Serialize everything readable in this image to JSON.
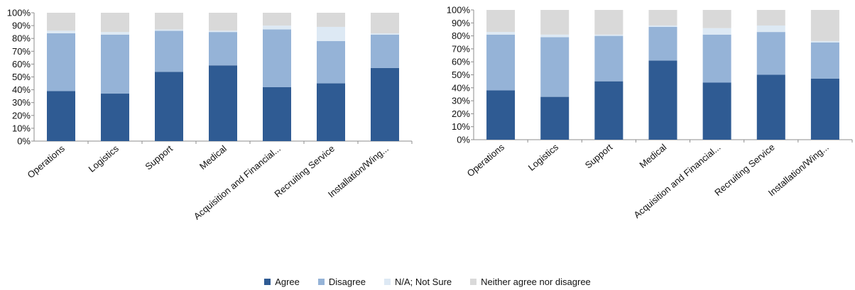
{
  "chart_data": [
    {
      "type": "bar",
      "stacked": true,
      "categories": [
        "Operations",
        "Logistics",
        "Support",
        "Medical",
        "Acquisition and Financial...",
        "Recruiting Service",
        "Installation/Wing..."
      ],
      "ylim": [
        0,
        100
      ],
      "yticks": [
        "0%",
        "10%",
        "20%",
        "30%",
        "40%",
        "50%",
        "60%",
        "70%",
        "80%",
        "90%",
        "100%"
      ],
      "series": [
        {
          "name": "Agree",
          "values": [
            39,
            37,
            54,
            59,
            42,
            45,
            57
          ]
        },
        {
          "name": "Disagree",
          "values": [
            45,
            46,
            32,
            26,
            45,
            33,
            26
          ]
        },
        {
          "name": "N/A; Not Sure",
          "values": [
            2,
            2,
            1,
            1,
            3,
            11,
            1
          ]
        },
        {
          "name": "Neither agree nor disagree",
          "values": [
            14,
            15,
            13,
            14,
            10,
            11,
            16
          ]
        }
      ],
      "grid": false
    },
    {
      "type": "bar",
      "stacked": true,
      "categories": [
        "Operations",
        "Logistics",
        "Support",
        "Medical",
        "Acquisition and Financial...",
        "Recruiting Service",
        "Installation/Wing..."
      ],
      "ylim": [
        0,
        100
      ],
      "yticks": [
        "0%",
        "10%",
        "20%",
        "30%",
        "40%",
        "50%",
        "60%",
        "70%",
        "80%",
        "90%",
        "100%"
      ],
      "series": [
        {
          "name": "Agree",
          "values": [
            38,
            33,
            45,
            61,
            44,
            50,
            47
          ]
        },
        {
          "name": "Disagree",
          "values": [
            43,
            46,
            35,
            26,
            37,
            33,
            28
          ]
        },
        {
          "name": "N/A; Not Sure",
          "values": [
            2,
            2,
            1,
            1,
            5,
            5,
            1
          ]
        },
        {
          "name": "Neither agree nor disagree",
          "values": [
            17,
            19,
            19,
            12,
            14,
            12,
            24
          ]
        }
      ],
      "grid": false
    }
  ],
  "legend": [
    {
      "label": "Agree",
      "color": "#2f5b93"
    },
    {
      "label": "Disagree",
      "color": "#95b3d7"
    },
    {
      "label": "N/A; Not Sure",
      "color": "#dde9f4"
    },
    {
      "label": "Neither agree nor disagree",
      "color": "#d9d9d9"
    }
  ],
  "colors": [
    "#2f5b93",
    "#95b3d7",
    "#dde9f4",
    "#d9d9d9"
  ]
}
